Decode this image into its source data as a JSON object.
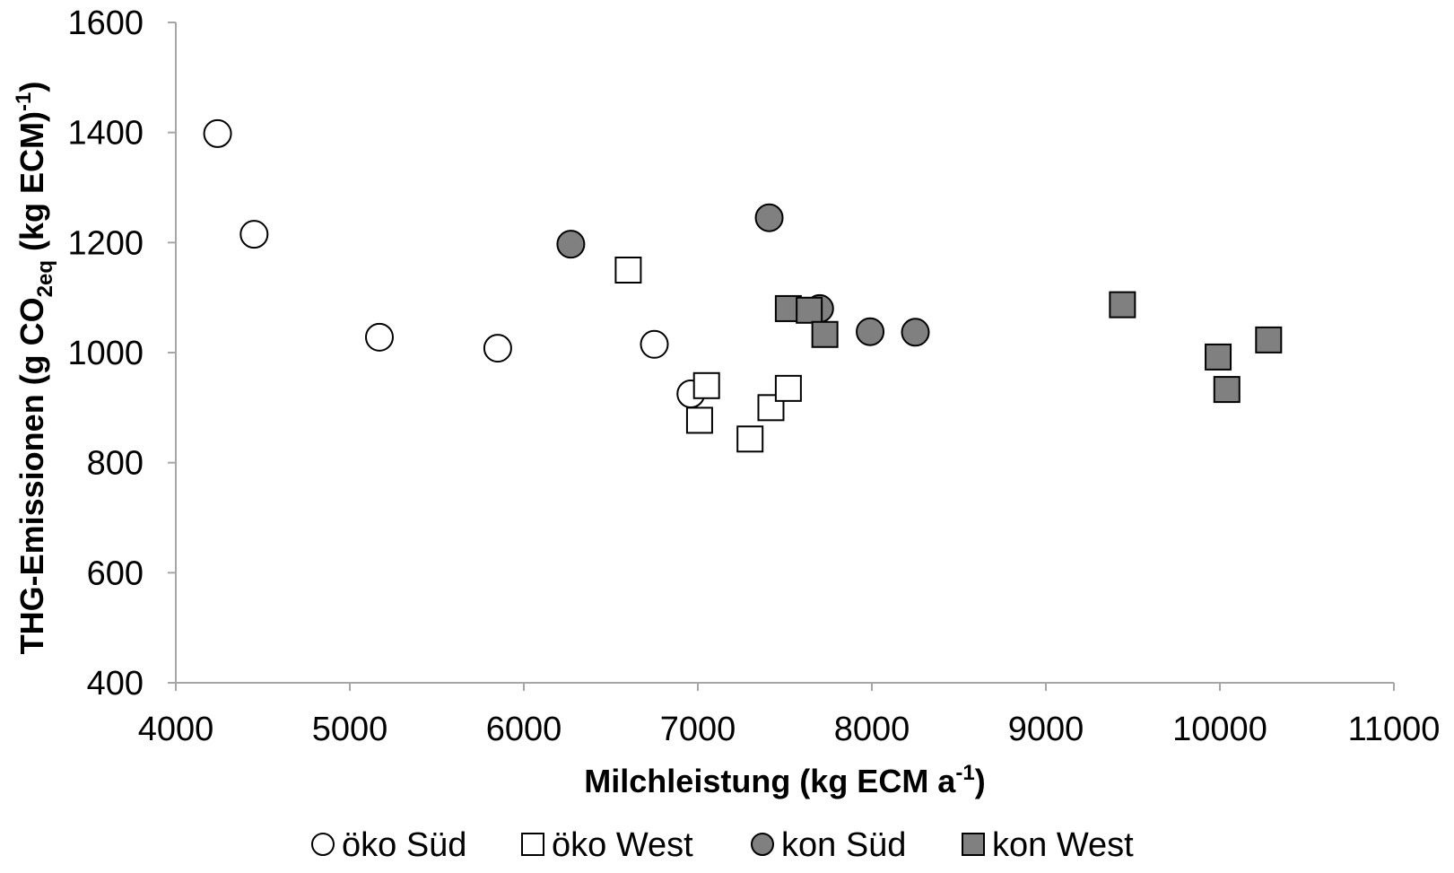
{
  "chart_data": {
    "type": "scatter",
    "xlabel": {
      "main": "Milchleistung (kg ECM a",
      "sup": "-1",
      "end": ")"
    },
    "ylabel": {
      "main": "THG-Emissionen (g CO",
      "sub": "2eq",
      "mid": " (kg ECM)",
      "sup": "-1",
      "end": ")"
    },
    "xlim": [
      4000,
      11000
    ],
    "ylim": [
      400,
      1600
    ],
    "x_ticks": [
      "4000",
      "5000",
      "6000",
      "7000",
      "8000",
      "9000",
      "10000",
      "11000"
    ],
    "y_ticks": [
      "400",
      "600",
      "800",
      "1000",
      "1200",
      "1400",
      "1600"
    ],
    "grid": false,
    "legend_position": "bottom",
    "series": [
      {
        "name": "öko Süd",
        "marker": "circle",
        "fill": "#ffffff",
        "points": [
          [
            4240,
            1398
          ],
          [
            4450,
            1215
          ],
          [
            5170,
            1028
          ],
          [
            5850,
            1008
          ],
          [
            6750,
            1015
          ],
          [
            6960,
            925
          ]
        ]
      },
      {
        "name": "öko West",
        "marker": "square",
        "fill": "#ffffff",
        "points": [
          [
            6600,
            1150
          ],
          [
            7050,
            940
          ],
          [
            7010,
            877
          ],
          [
            7300,
            843
          ],
          [
            7420,
            900
          ],
          [
            7520,
            935
          ]
        ]
      },
      {
        "name": "kon Süd",
        "marker": "circle",
        "fill": "#808080",
        "points": [
          [
            6270,
            1197
          ],
          [
            7410,
            1245
          ],
          [
            7700,
            1080
          ],
          [
            7990,
            1038
          ],
          [
            8250,
            1037
          ]
        ]
      },
      {
        "name": "kon West",
        "marker": "square",
        "fill": "#808080",
        "points": [
          [
            7520,
            1080
          ],
          [
            7640,
            1077
          ],
          [
            7730,
            1033
          ],
          [
            9440,
            1087
          ],
          [
            9990,
            992
          ],
          [
            10040,
            933
          ],
          [
            10280,
            1023
          ]
        ]
      }
    ]
  }
}
